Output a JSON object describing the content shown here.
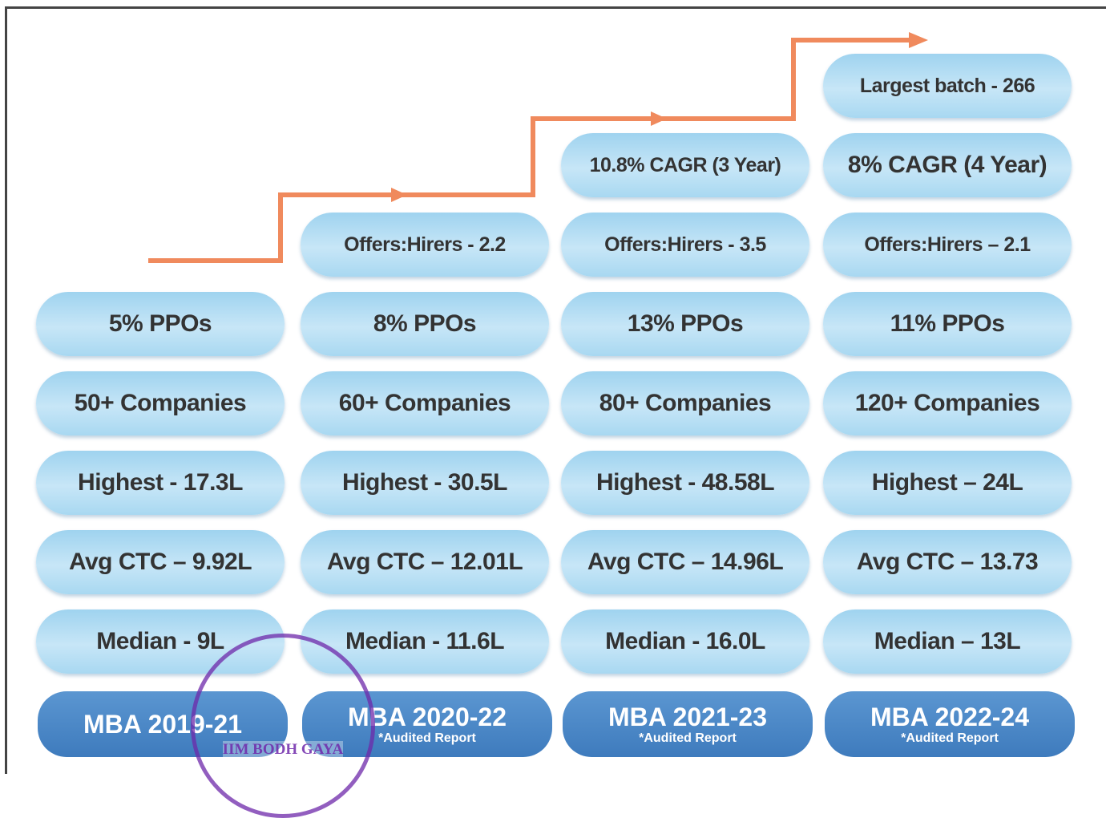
{
  "columns": [
    {
      "heading": "MBA 2019-21",
      "note": null,
      "items": [
        "5% PPOs",
        "50+ Companies",
        "Highest - 17.3L",
        "Avg CTC – 9.92L",
        "Median - 9L"
      ]
    },
    {
      "heading": "MBA 2020-22",
      "note": "*Audited Report",
      "items": [
        "Offers:Hirers - 2.2",
        "8% PPOs",
        "60+ Companies",
        "Highest - 30.5L",
        "Avg CTC – 12.01L",
        "Median - 11.6L"
      ]
    },
    {
      "heading": "MBA 2021-23",
      "note": "*Audited Report",
      "items": [
        "10.8% CAGR (3 Year)",
        "Offers:Hirers - 3.5",
        "13% PPOs",
        "80+ Companies",
        "Highest - 48.58L",
        "Avg CTC – 14.96L",
        "Median - 16.0L"
      ]
    },
    {
      "heading": "MBA 2022-24",
      "note": "*Audited Report",
      "items": [
        "Largest batch - 266",
        "8% CAGR (4 Year)",
        "Offers:Hirers – 2.1",
        "11% PPOs",
        "120+ Companies",
        "Highest – 24L",
        "Avg CTC – 13.73",
        "Median – 13L"
      ]
    }
  ],
  "stamp": "IIM BODH GAYA"
}
